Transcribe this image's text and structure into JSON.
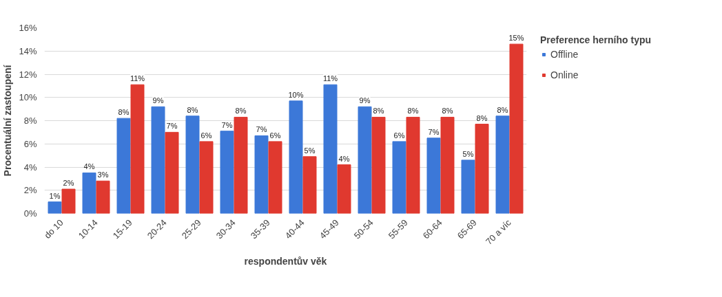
{
  "chart_data": {
    "type": "bar",
    "xlabel": "respondentův věk",
    "ylabel": "Procentuální zastoupení",
    "legend_title": "Preference herního typu",
    "categories": [
      "do 10",
      "10-14",
      "15-19",
      "20-24",
      "25-29",
      "30-34",
      "35-39",
      "40-44",
      "45-49",
      "50-54",
      "55-59",
      "60-64",
      "65-69",
      "70 a víc"
    ],
    "series": [
      {
        "name": "Offline",
        "color": "#3c78d8",
        "values": [
          1.0,
          3.5,
          8.2,
          9.2,
          8.4,
          7.1,
          6.7,
          9.7,
          11.1,
          9.2,
          6.2,
          6.5,
          4.6,
          8.4
        ],
        "value_labels": [
          "1%",
          "4%",
          "8%",
          "9%",
          "8%",
          "7%",
          "7%",
          "10%",
          "11%",
          "9%",
          "6%",
          "7%",
          "5%",
          "8%"
        ]
      },
      {
        "name": "Online",
        "color": "#e0392f",
        "values": [
          2.1,
          2.8,
          11.1,
          7.0,
          6.2,
          8.3,
          6.2,
          4.9,
          4.2,
          8.3,
          8.3,
          8.3,
          7.7,
          14.6
        ],
        "value_labels": [
          "2%",
          "3%",
          "11%",
          "7%",
          "6%",
          "8%",
          "6%",
          "5%",
          "4%",
          "8%",
          "8%",
          "8%",
          "8%",
          "15%"
        ]
      }
    ],
    "ylim": [
      0,
      16
    ],
    "yticks": [
      {
        "value": 0,
        "label": "0%"
      },
      {
        "value": 2,
        "label": "2%"
      },
      {
        "value": 4,
        "label": "4%"
      },
      {
        "value": 6,
        "label": "6%"
      },
      {
        "value": 8,
        "label": "8%"
      },
      {
        "value": 10,
        "label": "10%"
      },
      {
        "value": 12,
        "label": "12%"
      },
      {
        "value": 14,
        "label": "14%"
      },
      {
        "value": 16,
        "label": "16%"
      }
    ],
    "grid": "y",
    "legend": "right"
  }
}
